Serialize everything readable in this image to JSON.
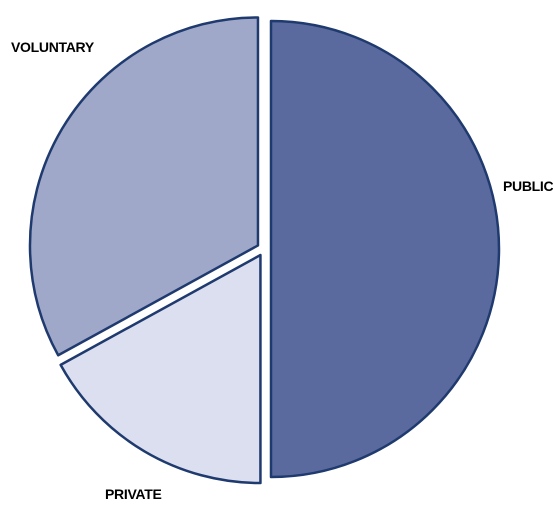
{
  "chart_data": {
    "type": "pie",
    "title": "",
    "slices": [
      {
        "label": "PUBLIC",
        "value": 50,
        "color": "#5a6a9e"
      },
      {
        "label": "PRIVATE",
        "value": 17,
        "color": "#dcdfef"
      },
      {
        "label": "VOLUNTARY",
        "value": 33,
        "color": "#a0a8c9"
      }
    ],
    "start": "12 o'clock",
    "direction": "clockwise",
    "exploded": true,
    "legend": "none",
    "edge_color": "#1f3a6e"
  }
}
